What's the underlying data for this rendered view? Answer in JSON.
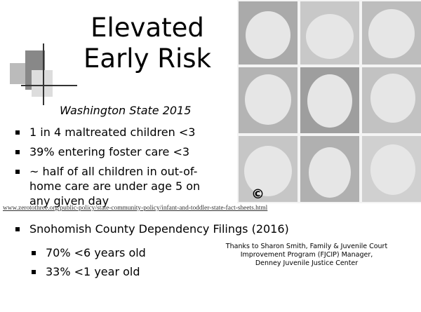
{
  "slide": {
    "title": [
      "Elevated",
      "Early Risk"
    ],
    "subtitle": "Washington State 2015",
    "bullets": [
      "1 in 4 maltreated children <3",
      "39% entering foster care <3",
      "~ half of all children in out-of-home care are under age 5 on any given day"
    ],
    "copyright": "©",
    "source_url": "www.zerotothree.org/public-policy/state-community-policy/infant-and-toddler-state-fact-sheets.html",
    "section": {
      "heading": "Snohomish County Dependency Filings (2016)",
      "items": [
        "70% <6 years old",
        "33% <1 year old"
      ]
    },
    "credit": [
      "Thanks to Sharon Smith, Family & Juvenile Court",
      "Improvement Program (FJCIP) Manager,",
      "Denney Juvenile Justice Center"
    ]
  }
}
